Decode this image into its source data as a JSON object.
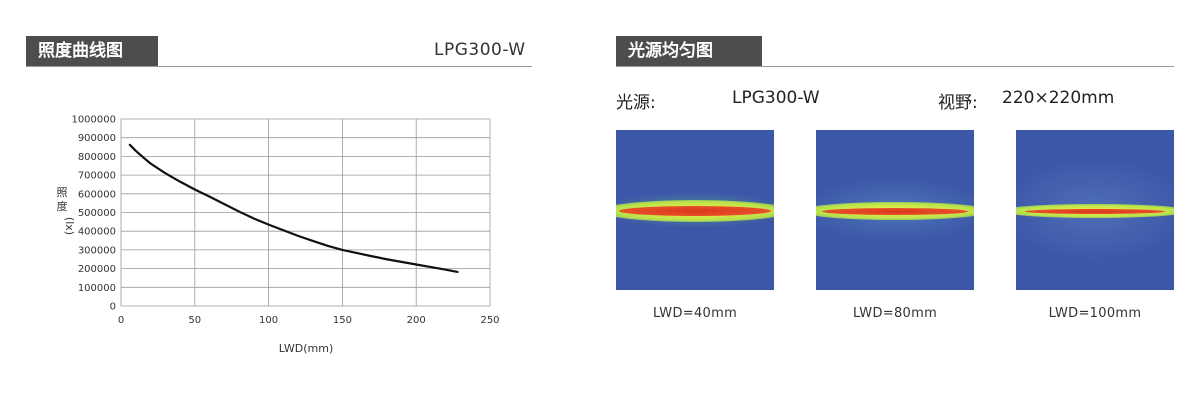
{
  "left_panel": {
    "title": "照度曲线图",
    "model": "LPG300-W"
  },
  "right_panel": {
    "title": "光源均匀图",
    "light_source_label": "光源:",
    "light_source_value": "LPG300-W",
    "fov_label": "视野:",
    "fov_value": "220×220mm",
    "heatmaps": [
      {
        "caption": "LWD=40mm"
      },
      {
        "caption": "LWD=80mm"
      },
      {
        "caption": "LWD=100mm"
      }
    ]
  },
  "chart_data": {
    "type": "line",
    "xlabel": "LWD(mm)",
    "ylabel": "照度(lx)",
    "xlim": [
      0,
      250
    ],
    "ylim": [
      0,
      1000000
    ],
    "x_ticks": [
      "0",
      "50",
      "100",
      "150",
      "200",
      "250"
    ],
    "y_ticks": [
      "0",
      "100000",
      "200000",
      "300000",
      "400000",
      "500000",
      "600000",
      "700000",
      "800000",
      "900000",
      "1000000"
    ],
    "grid": true,
    "series": [
      {
        "x": [
          6,
          10,
          15,
          20,
          30,
          40,
          50,
          60,
          70,
          80,
          90,
          100,
          110,
          120,
          130,
          140,
          150,
          160,
          170,
          180,
          190,
          200,
          210,
          220,
          228
        ],
        "values": [
          862000,
          830000,
          795000,
          762000,
          710000,
          665000,
          623000,
          585000,
          545000,
          505000,
          468000,
          435000,
          405000,
          375000,
          348000,
          322000,
          300000,
          283000,
          266000,
          250000,
          236000,
          222000,
          208000,
          194000,
          182000
        ],
        "color": "#111111"
      }
    ]
  }
}
